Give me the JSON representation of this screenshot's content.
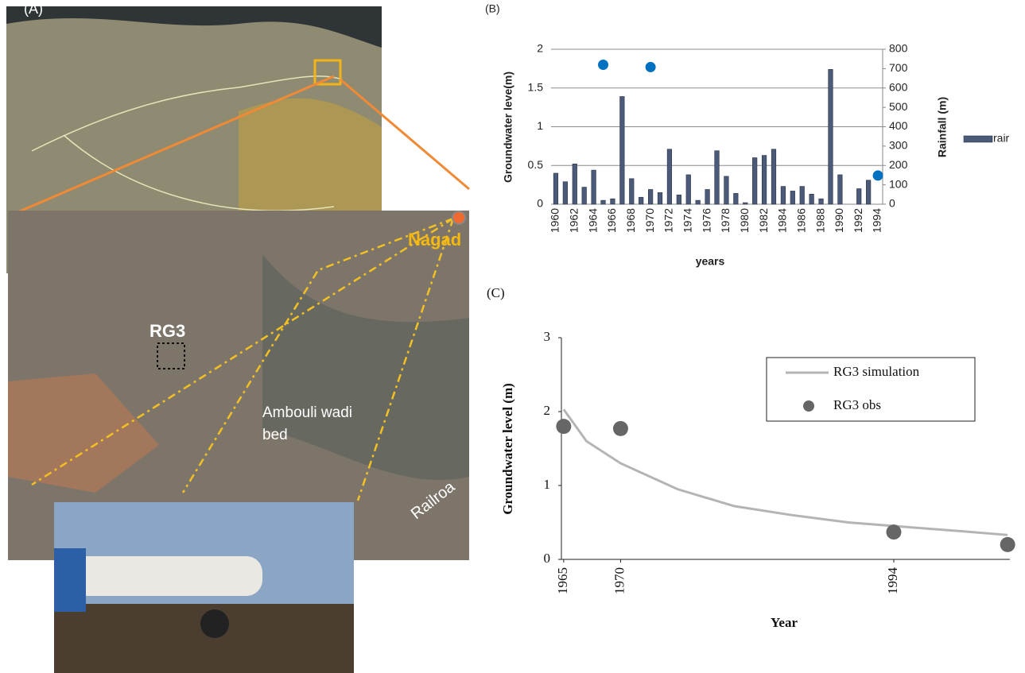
{
  "panel_a": {
    "label": "(A)",
    "place": "Nagad",
    "site": "RG3",
    "wadi": [
      "Ambouli wadi",
      "bed"
    ],
    "rail": "Railroa"
  },
  "chart_data": [
    {
      "type": "bar",
      "label": "(B)",
      "xlabel": "years",
      "ylabel": "Groundwater leve(m)",
      "y2label": "Rainfall (m)",
      "categories": [
        "1960",
        null,
        "1962",
        null,
        "1964",
        null,
        "1966",
        null,
        "1968",
        null,
        "1970",
        null,
        "1972",
        null,
        "1974",
        null,
        "1976",
        null,
        "1978",
        null,
        "1980",
        null,
        "1982",
        null,
        "1984",
        null,
        "1986",
        null,
        "1988",
        null,
        "1990",
        null,
        "1992",
        null,
        "1994"
      ],
      "ylim": [
        0,
        2
      ],
      "yticks": [
        0,
        0.5,
        1,
        1.5,
        2
      ],
      "y2lim": [
        0,
        800
      ],
      "y2ticks": [
        0,
        100,
        200,
        300,
        400,
        500,
        600,
        700,
        800
      ],
      "grid": true,
      "legend": "right",
      "series": [
        {
          "name": "rair",
          "color": "#4a5a78",
          "axis": "y2",
          "values": [
            160,
            116,
            208,
            88,
            176,
            20,
            28,
            556,
            132,
            36,
            76,
            60,
            284,
            48,
            152,
            20,
            76,
            276,
            144,
            56,
            8,
            240,
            252,
            284,
            92,
            68,
            92,
            52,
            28,
            696,
            152,
            0,
            80,
            124,
            null
          ]
        },
        {
          "type": "scatter",
          "color": "#0070c0",
          "values": [
            null,
            null,
            null,
            null,
            null,
            1.8,
            null,
            null,
            null,
            null,
            1.77,
            null,
            null,
            null,
            null,
            null,
            null,
            null,
            null,
            null,
            null,
            null,
            null,
            null,
            null,
            null,
            null,
            null,
            null,
            null,
            null,
            null,
            null,
            null,
            0.37
          ]
        }
      ]
    },
    {
      "type": "line",
      "label": "(C)",
      "xlabel": "Year",
      "ylabel": "Groundwater level (m)",
      "xlim": [
        1964.8,
        2004.2
      ],
      "xticks": [
        1965,
        1970,
        1994
      ],
      "ylim": [
        0,
        3
      ],
      "yticks": [
        0,
        1,
        2,
        3
      ],
      "grid": false,
      "legend": "upper right",
      "series": [
        {
          "name": "RG3 simulation",
          "type": "line",
          "color": "#b4b4b4",
          "x": [
            1965,
            1967,
            1970,
            1975,
            1980,
            1985,
            1990,
            1995,
            2000,
            2004
          ],
          "values": [
            2.03,
            1.6,
            1.3,
            0.95,
            0.72,
            0.6,
            0.5,
            0.44,
            0.38,
            0.33
          ]
        },
        {
          "name": "RG3 obs",
          "type": "scatter",
          "color": "#666666",
          "x": [
            1965,
            1970,
            1994,
            2004
          ],
          "values": [
            1.8,
            1.77,
            0.37,
            0.2
          ]
        }
      ]
    }
  ]
}
